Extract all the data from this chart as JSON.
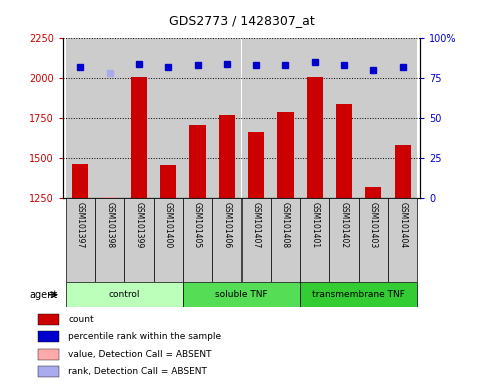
{
  "title": "GDS2773 / 1428307_at",
  "samples": [
    "GSM101397",
    "GSM101398",
    "GSM101399",
    "GSM101400",
    "GSM101405",
    "GSM101406",
    "GSM101407",
    "GSM101408",
    "GSM101401",
    "GSM101402",
    "GSM101403",
    "GSM101404"
  ],
  "counts": [
    1460,
    1255,
    2005,
    1455,
    1705,
    1770,
    1660,
    1790,
    2005,
    1840,
    1315,
    1580
  ],
  "absent": [
    false,
    true,
    false,
    false,
    false,
    false,
    false,
    false,
    false,
    false,
    false,
    false
  ],
  "percentile_ranks": [
    82,
    78,
    84,
    82,
    83,
    84,
    83,
    83,
    85,
    83,
    80,
    82
  ],
  "rank_absent": [
    false,
    true,
    false,
    false,
    false,
    false,
    false,
    false,
    false,
    false,
    false,
    false
  ],
  "ylim_left": [
    1250,
    2250
  ],
  "ylim_right": [
    0,
    100
  ],
  "yticks_left": [
    1250,
    1500,
    1750,
    2000,
    2250
  ],
  "yticks_right": [
    0,
    25,
    50,
    75,
    100
  ],
  "groups": [
    {
      "label": "control",
      "start": 0,
      "end": 4,
      "color": "#bbffbb"
    },
    {
      "label": "soluble TNF",
      "start": 4,
      "end": 8,
      "color": "#55dd55"
    },
    {
      "label": "transmembrane TNF",
      "start": 8,
      "end": 12,
      "color": "#33cc33"
    }
  ],
  "bar_color": "#cc0000",
  "bar_absent_color": "#ffaaaa",
  "dot_color": "#0000cc",
  "dot_absent_color": "#aaaaee",
  "bg_color": "#cccccc",
  "plot_bg": "#ffffff",
  "left_label_color": "#cc0000",
  "right_label_color": "#0000cc",
  "legend_items": [
    {
      "color": "#cc0000",
      "label": "count"
    },
    {
      "color": "#0000cc",
      "label": "percentile rank within the sample"
    },
    {
      "color": "#ffaaaa",
      "label": "value, Detection Call = ABSENT"
    },
    {
      "color": "#aaaaee",
      "label": "rank, Detection Call = ABSENT"
    }
  ],
  "agent_label": "agent",
  "bar_width": 0.55
}
